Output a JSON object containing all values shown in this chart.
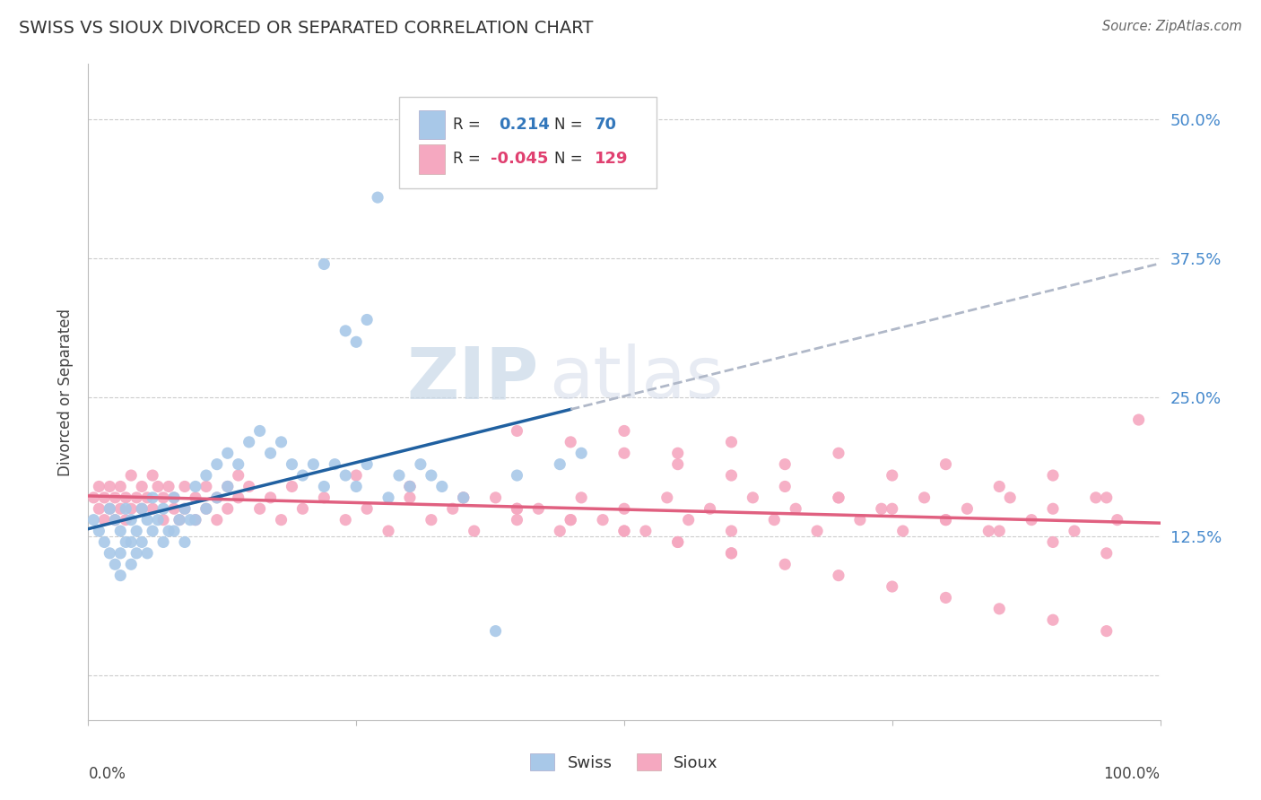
{
  "title": "SWISS VS SIOUX DIVORCED OR SEPARATED CORRELATION CHART",
  "source": "Source: ZipAtlas.com",
  "ylabel": "Divorced or Separated",
  "xlim": [
    0.0,
    1.0
  ],
  "ylim": [
    -0.04,
    0.55
  ],
  "yticks": [
    0.0,
    0.125,
    0.25,
    0.375,
    0.5
  ],
  "ytick_labels": [
    "",
    "12.5%",
    "25.0%",
    "37.5%",
    "50.0%"
  ],
  "swiss_color": "#a8c8e8",
  "sioux_color": "#f5a8c0",
  "swiss_line_color": "#2060a0",
  "sioux_line_color": "#e06080",
  "trend_line_color": "#b0b8c8",
  "background_color": "#ffffff",
  "grid_color": "#cccccc",
  "watermark_zip": "ZIP",
  "watermark_atlas": "atlas",
  "swiss_x": [
    0.005,
    0.01,
    0.015,
    0.02,
    0.02,
    0.025,
    0.025,
    0.03,
    0.03,
    0.03,
    0.035,
    0.035,
    0.04,
    0.04,
    0.04,
    0.045,
    0.045,
    0.05,
    0.05,
    0.055,
    0.055,
    0.06,
    0.06,
    0.065,
    0.07,
    0.07,
    0.075,
    0.08,
    0.08,
    0.085,
    0.09,
    0.09,
    0.095,
    0.1,
    0.1,
    0.11,
    0.11,
    0.12,
    0.12,
    0.13,
    0.13,
    0.14,
    0.15,
    0.16,
    0.17,
    0.18,
    0.19,
    0.2,
    0.21,
    0.22,
    0.23,
    0.24,
    0.25,
    0.26,
    0.27,
    0.28,
    0.29,
    0.3,
    0.31,
    0.32,
    0.22,
    0.24,
    0.25,
    0.26,
    0.33,
    0.35,
    0.38,
    0.4,
    0.44,
    0.46
  ],
  "swiss_y": [
    0.14,
    0.13,
    0.12,
    0.15,
    0.11,
    0.14,
    0.1,
    0.13,
    0.11,
    0.09,
    0.15,
    0.12,
    0.14,
    0.12,
    0.1,
    0.13,
    0.11,
    0.15,
    0.12,
    0.14,
    0.11,
    0.16,
    0.13,
    0.14,
    0.15,
    0.12,
    0.13,
    0.16,
    0.13,
    0.14,
    0.15,
    0.12,
    0.14,
    0.17,
    0.14,
    0.18,
    0.15,
    0.19,
    0.16,
    0.2,
    0.17,
    0.19,
    0.21,
    0.22,
    0.2,
    0.21,
    0.19,
    0.18,
    0.19,
    0.17,
    0.19,
    0.18,
    0.17,
    0.19,
    0.43,
    0.16,
    0.18,
    0.17,
    0.19,
    0.18,
    0.37,
    0.31,
    0.3,
    0.32,
    0.17,
    0.16,
    0.04,
    0.18,
    0.19,
    0.2
  ],
  "sioux_x": [
    0.005,
    0.01,
    0.01,
    0.015,
    0.015,
    0.02,
    0.02,
    0.025,
    0.025,
    0.03,
    0.03,
    0.035,
    0.035,
    0.04,
    0.04,
    0.045,
    0.05,
    0.05,
    0.055,
    0.06,
    0.06,
    0.065,
    0.07,
    0.07,
    0.075,
    0.08,
    0.08,
    0.085,
    0.09,
    0.09,
    0.1,
    0.1,
    0.11,
    0.11,
    0.12,
    0.12,
    0.13,
    0.13,
    0.14,
    0.14,
    0.15,
    0.16,
    0.17,
    0.18,
    0.19,
    0.2,
    0.22,
    0.24,
    0.26,
    0.28,
    0.3,
    0.32,
    0.34,
    0.36,
    0.38,
    0.4,
    0.42,
    0.44,
    0.46,
    0.48,
    0.5,
    0.52,
    0.54,
    0.56,
    0.58,
    0.6,
    0.62,
    0.64,
    0.66,
    0.68,
    0.7,
    0.72,
    0.74,
    0.76,
    0.78,
    0.8,
    0.82,
    0.84,
    0.86,
    0.88,
    0.9,
    0.92,
    0.94,
    0.96,
    0.98,
    0.5,
    0.55,
    0.6,
    0.65,
    0.7,
    0.75,
    0.8,
    0.85,
    0.9,
    0.95,
    0.4,
    0.45,
    0.5,
    0.55,
    0.6,
    0.65,
    0.7,
    0.75,
    0.8,
    0.85,
    0.9,
    0.95,
    0.3,
    0.35,
    0.4,
    0.45,
    0.5,
    0.55,
    0.6,
    0.65,
    0.7,
    0.75,
    0.8,
    0.85,
    0.9,
    0.95,
    0.25,
    0.3,
    0.35,
    0.4,
    0.45,
    0.5,
    0.55,
    0.6
  ],
  "sioux_y": [
    0.16,
    0.15,
    0.17,
    0.16,
    0.14,
    0.17,
    0.15,
    0.16,
    0.14,
    0.17,
    0.15,
    0.16,
    0.14,
    0.18,
    0.15,
    0.16,
    0.17,
    0.15,
    0.16,
    0.18,
    0.15,
    0.17,
    0.16,
    0.14,
    0.17,
    0.15,
    0.16,
    0.14,
    0.17,
    0.15,
    0.16,
    0.14,
    0.17,
    0.15,
    0.16,
    0.14,
    0.17,
    0.15,
    0.18,
    0.16,
    0.17,
    0.15,
    0.16,
    0.14,
    0.17,
    0.15,
    0.16,
    0.14,
    0.15,
    0.13,
    0.16,
    0.14,
    0.15,
    0.13,
    0.16,
    0.14,
    0.15,
    0.13,
    0.16,
    0.14,
    0.15,
    0.13,
    0.16,
    0.14,
    0.15,
    0.13,
    0.16,
    0.14,
    0.15,
    0.13,
    0.16,
    0.14,
    0.15,
    0.13,
    0.16,
    0.14,
    0.15,
    0.13,
    0.16,
    0.14,
    0.15,
    0.13,
    0.16,
    0.14,
    0.23,
    0.22,
    0.2,
    0.21,
    0.19,
    0.2,
    0.18,
    0.19,
    0.17,
    0.18,
    0.16,
    0.22,
    0.21,
    0.2,
    0.19,
    0.18,
    0.17,
    0.16,
    0.15,
    0.14,
    0.13,
    0.12,
    0.11,
    0.17,
    0.16,
    0.15,
    0.14,
    0.13,
    0.12,
    0.11,
    0.1,
    0.09,
    0.08,
    0.07,
    0.06,
    0.05,
    0.04,
    0.18,
    0.17,
    0.16,
    0.15,
    0.14,
    0.13,
    0.12,
    0.11
  ]
}
